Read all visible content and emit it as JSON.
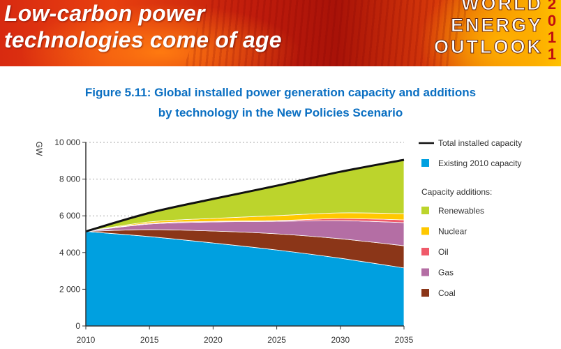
{
  "banner": {
    "title_line1": "Low-carbon power",
    "title_line2": "technologies come of age",
    "brand_line1": "WORLD",
    "brand_line2": "ENERGY",
    "brand_line3": "OUTLOOK",
    "year_digits": [
      "2",
      "0",
      "1",
      "1"
    ]
  },
  "figure": {
    "title_line1": "Figure 5.11: Global installed power generation capacity and additions",
    "title_line2": "by technology in the New Policies Scenario"
  },
  "chart_data": {
    "type": "area",
    "title": "Figure 5.11: Global installed power generation capacity and additions by technology in the New Policies Scenario",
    "xlabel": "",
    "ylabel": "GW",
    "x": [
      2010,
      2015,
      2020,
      2025,
      2030,
      2035
    ],
    "xticks": [
      "2010",
      "2015",
      "2020",
      "2025",
      "2030",
      "2035"
    ],
    "ylim": [
      0,
      10000
    ],
    "yticks": [
      0,
      2000,
      4000,
      6000,
      8000,
      10000
    ],
    "ytick_labels": [
      "0",
      "2 000",
      "4 000",
      "6 000",
      "8 000",
      "10 000"
    ],
    "grid": "horizontal dotted",
    "stacked": true,
    "series": [
      {
        "name": "Existing 2010 capacity",
        "color": "#00a0e0",
        "values": [
          5150,
          4870,
          4520,
          4140,
          3690,
          3160
        ]
      },
      {
        "name": "Coal",
        "color": "#8b3618",
        "values": [
          0,
          380,
          650,
          880,
          1060,
          1210
        ]
      },
      {
        "name": "Gas",
        "color": "#b46ea4",
        "values": [
          0,
          300,
          495,
          680,
          990,
          1260
        ]
      },
      {
        "name": "Oil",
        "color": "#f05a6a",
        "values": [
          0,
          40,
          35,
          40,
          110,
          150
        ]
      },
      {
        "name": "Nuclear",
        "color": "#ffc800",
        "values": [
          0,
          80,
          160,
          270,
          310,
          340
        ]
      },
      {
        "name": "Renewables",
        "color": "#bcd42c",
        "values": [
          0,
          490,
          1060,
          1630,
          2240,
          2930
        ]
      }
    ],
    "total_line": {
      "name": "Total installed capacity",
      "color": "#111111",
      "values": [
        5150,
        6160,
        6920,
        7640,
        8400,
        9050
      ]
    },
    "legend": {
      "placement": "right",
      "total_label": "Total installed capacity",
      "existing_label": "Existing 2010 capacity",
      "additions_heading": "Capacity additions:",
      "additions": [
        {
          "label": "Renewables",
          "color": "#bcd42c"
        },
        {
          "label": "Nuclear",
          "color": "#ffc800"
        },
        {
          "label": "Oil",
          "color": "#f05a6a"
        },
        {
          "label": "Gas",
          "color": "#b46ea4"
        },
        {
          "label": "Coal",
          "color": "#8b3618"
        }
      ]
    }
  }
}
